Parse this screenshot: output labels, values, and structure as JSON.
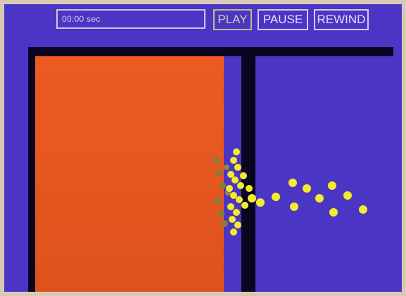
{
  "toolbar": {
    "time_display": "00:00 sec",
    "play_label": "PLAY",
    "pause_label": "PAUSE",
    "rewind_label": "REWIND"
  },
  "colors": {
    "background": "#4b35c4",
    "hot_region": "#e5561f",
    "wall": "#0b0620",
    "particle": "#f4ec2a",
    "particle_faded": "#8a7a3a"
  }
}
